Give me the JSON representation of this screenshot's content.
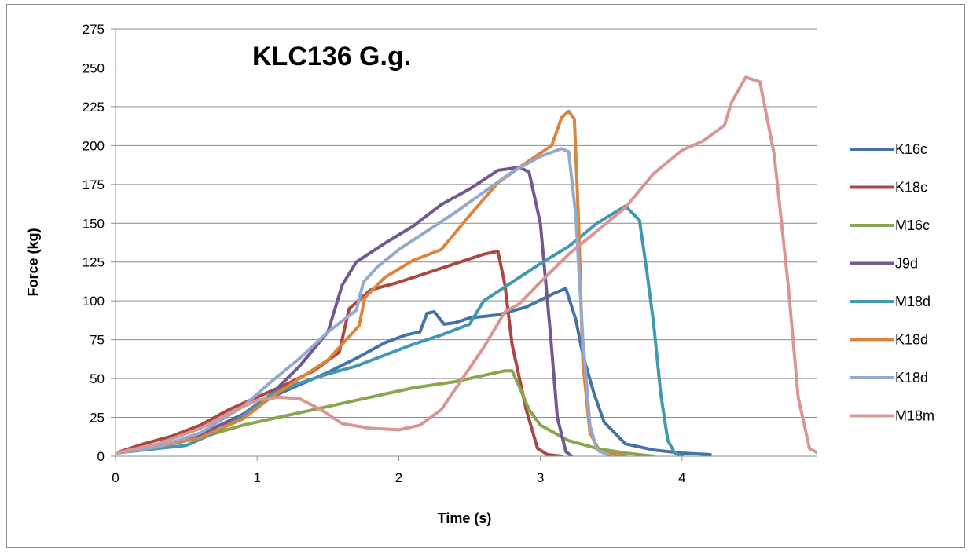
{
  "chart_data": {
    "type": "line",
    "title": "KLC136 G.g.",
    "xlabel": "Time (s)",
    "ylabel": "Force (kg)",
    "xlim": [
      0,
      4.95
    ],
    "ylim": [
      0,
      275
    ],
    "xticks": [
      0,
      1,
      2,
      3,
      4
    ],
    "yticks": [
      0,
      25,
      50,
      75,
      100,
      125,
      150,
      175,
      200,
      225,
      250,
      275
    ],
    "grid": "horizontal",
    "legend_position": "right",
    "series": [
      {
        "name": "K16c",
        "color": "#4572A7",
        "points": [
          [
            0,
            2
          ],
          [
            0.3,
            6
          ],
          [
            0.6,
            14
          ],
          [
            0.9,
            27
          ],
          [
            1.1,
            38
          ],
          [
            1.3,
            46
          ],
          [
            1.5,
            54
          ],
          [
            1.7,
            63
          ],
          [
            1.9,
            73
          ],
          [
            2.05,
            78
          ],
          [
            2.15,
            80
          ],
          [
            2.2,
            92
          ],
          [
            2.25,
            93
          ],
          [
            2.32,
            85
          ],
          [
            2.4,
            86
          ],
          [
            2.5,
            89
          ],
          [
            2.7,
            91
          ],
          [
            2.9,
            96
          ],
          [
            3.1,
            105
          ],
          [
            3.18,
            108
          ],
          [
            3.25,
            88
          ],
          [
            3.3,
            65
          ],
          [
            3.38,
            40
          ],
          [
            3.45,
            22
          ],
          [
            3.6,
            8
          ],
          [
            3.8,
            4
          ],
          [
            4.0,
            2
          ],
          [
            4.2,
            1
          ]
        ]
      },
      {
        "name": "K18c",
        "color": "#AA4643",
        "points": [
          [
            0,
            2
          ],
          [
            0.2,
            8
          ],
          [
            0.4,
            13
          ],
          [
            0.6,
            20
          ],
          [
            0.8,
            30
          ],
          [
            1.0,
            38
          ],
          [
            1.2,
            46
          ],
          [
            1.4,
            55
          ],
          [
            1.58,
            67
          ],
          [
            1.65,
            95
          ],
          [
            1.8,
            107
          ],
          [
            2.0,
            112
          ],
          [
            2.2,
            118
          ],
          [
            2.4,
            124
          ],
          [
            2.6,
            130
          ],
          [
            2.7,
            132
          ],
          [
            2.75,
            110
          ],
          [
            2.8,
            72
          ],
          [
            2.9,
            30
          ],
          [
            2.98,
            5
          ],
          [
            3.05,
            1
          ],
          [
            3.15,
            0
          ]
        ]
      },
      {
        "name": "M16c",
        "color": "#89A54E",
        "points": [
          [
            0,
            2
          ],
          [
            0.3,
            6
          ],
          [
            0.6,
            12
          ],
          [
            0.9,
            20
          ],
          [
            1.2,
            26
          ],
          [
            1.5,
            32
          ],
          [
            1.8,
            38
          ],
          [
            2.1,
            44
          ],
          [
            2.4,
            48
          ],
          [
            2.6,
            52
          ],
          [
            2.75,
            55
          ],
          [
            2.8,
            55
          ],
          [
            2.85,
            45
          ],
          [
            2.92,
            30
          ],
          [
            3.0,
            20
          ],
          [
            3.2,
            10
          ],
          [
            3.4,
            5
          ],
          [
            3.6,
            2
          ],
          [
            3.8,
            0
          ]
        ]
      },
      {
        "name": "J9d",
        "color": "#71588F",
        "points": [
          [
            0,
            2
          ],
          [
            0.3,
            6
          ],
          [
            0.6,
            14
          ],
          [
            0.9,
            27
          ],
          [
            1.1,
            40
          ],
          [
            1.3,
            58
          ],
          [
            1.5,
            80
          ],
          [
            1.6,
            110
          ],
          [
            1.7,
            125
          ],
          [
            1.9,
            137
          ],
          [
            2.1,
            148
          ],
          [
            2.3,
            162
          ],
          [
            2.5,
            172
          ],
          [
            2.7,
            184
          ],
          [
            2.85,
            186
          ],
          [
            2.92,
            183
          ],
          [
            3.0,
            150
          ],
          [
            3.07,
            80
          ],
          [
            3.12,
            25
          ],
          [
            3.18,
            3
          ],
          [
            3.22,
            0
          ]
        ]
      },
      {
        "name": "M18d",
        "color": "#4198AF",
        "points": [
          [
            0,
            2
          ],
          [
            0.3,
            5
          ],
          [
            0.5,
            7
          ],
          [
            0.7,
            15
          ],
          [
            0.9,
            26
          ],
          [
            1.1,
            40
          ],
          [
            1.3,
            47
          ],
          [
            1.5,
            53
          ],
          [
            1.7,
            58
          ],
          [
            1.9,
            65
          ],
          [
            2.1,
            72
          ],
          [
            2.3,
            78
          ],
          [
            2.5,
            85
          ],
          [
            2.6,
            100
          ],
          [
            2.8,
            112
          ],
          [
            3.0,
            124
          ],
          [
            3.2,
            135
          ],
          [
            3.4,
            150
          ],
          [
            3.6,
            161
          ],
          [
            3.7,
            152
          ],
          [
            3.75,
            120
          ],
          [
            3.8,
            85
          ],
          [
            3.85,
            40
          ],
          [
            3.9,
            10
          ],
          [
            3.95,
            2
          ],
          [
            4.0,
            0
          ]
        ]
      },
      {
        "name": "K18d",
        "color": "#DB843D",
        "points": [
          [
            0,
            2
          ],
          [
            0.3,
            6
          ],
          [
            0.6,
            12
          ],
          [
            0.9,
            24
          ],
          [
            1.1,
            38
          ],
          [
            1.3,
            50
          ],
          [
            1.5,
            62
          ],
          [
            1.72,
            84
          ],
          [
            1.76,
            102
          ],
          [
            1.9,
            115
          ],
          [
            2.1,
            126
          ],
          [
            2.3,
            133
          ],
          [
            2.5,
            155
          ],
          [
            2.7,
            176
          ],
          [
            2.9,
            189
          ],
          [
            3.08,
            200
          ],
          [
            3.15,
            218
          ],
          [
            3.2,
            222
          ],
          [
            3.24,
            217
          ],
          [
            3.27,
            150
          ],
          [
            3.3,
            60
          ],
          [
            3.35,
            15
          ],
          [
            3.42,
            3
          ],
          [
            3.6,
            0
          ]
        ]
      },
      {
        "name": "K18d",
        "color": "#93A9CF",
        "points": [
          [
            0,
            2
          ],
          [
            0.3,
            6
          ],
          [
            0.6,
            15
          ],
          [
            0.9,
            32
          ],
          [
            1.1,
            48
          ],
          [
            1.3,
            63
          ],
          [
            1.5,
            80
          ],
          [
            1.7,
            94
          ],
          [
            1.75,
            112
          ],
          [
            1.85,
            122
          ],
          [
            2.0,
            133
          ],
          [
            2.2,
            145
          ],
          [
            2.4,
            157
          ],
          [
            2.6,
            170
          ],
          [
            2.8,
            183
          ],
          [
            3.0,
            193
          ],
          [
            3.15,
            198
          ],
          [
            3.2,
            196
          ],
          [
            3.25,
            155
          ],
          [
            3.3,
            75
          ],
          [
            3.35,
            20
          ],
          [
            3.4,
            4
          ],
          [
            3.5,
            0
          ]
        ]
      },
      {
        "name": "M18m",
        "color": "#D99694",
        "points": [
          [
            0,
            2
          ],
          [
            0.3,
            8
          ],
          [
            0.6,
            18
          ],
          [
            0.85,
            30
          ],
          [
            1.0,
            36
          ],
          [
            1.15,
            38
          ],
          [
            1.3,
            37
          ],
          [
            1.45,
            30
          ],
          [
            1.6,
            21
          ],
          [
            1.8,
            18
          ],
          [
            2.0,
            17
          ],
          [
            2.15,
            20
          ],
          [
            2.3,
            30
          ],
          [
            2.45,
            50
          ],
          [
            2.6,
            70
          ],
          [
            2.75,
            93
          ],
          [
            2.85,
            98
          ],
          [
            3.0,
            112
          ],
          [
            3.2,
            130
          ],
          [
            3.4,
            145
          ],
          [
            3.6,
            160
          ],
          [
            3.8,
            182
          ],
          [
            4.0,
            197
          ],
          [
            4.15,
            203
          ],
          [
            4.3,
            213
          ],
          [
            4.35,
            228
          ],
          [
            4.45,
            244
          ],
          [
            4.55,
            241
          ],
          [
            4.65,
            195
          ],
          [
            4.75,
            110
          ],
          [
            4.82,
            38
          ],
          [
            4.9,
            5
          ],
          [
            5.0,
            0
          ]
        ]
      }
    ]
  }
}
